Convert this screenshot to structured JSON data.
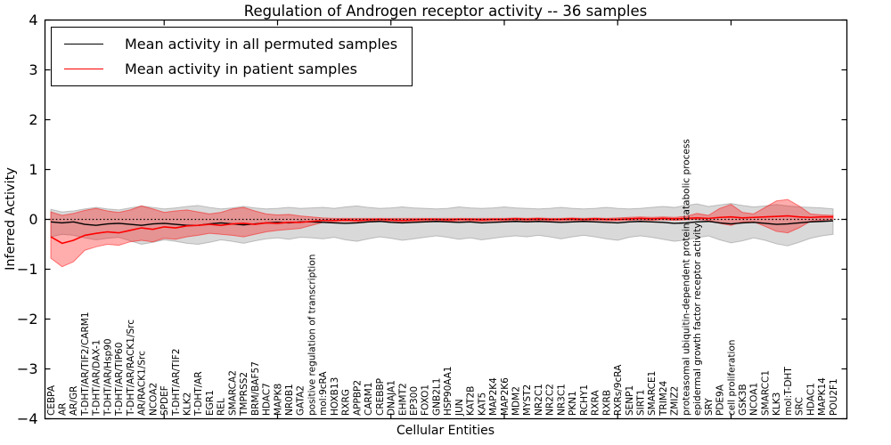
{
  "figure": {
    "title": "Regulation of Androgen receptor activity -- 36 samples",
    "xlabel": "Cellular Entities",
    "ylabel": "Inferred Activity"
  },
  "legend": {
    "entries": [
      {
        "label": "Mean activity in all permuted samples",
        "color": "#000000"
      },
      {
        "label": "Mean activity in patient samples",
        "color": "#ff0000"
      }
    ]
  },
  "chart_data": {
    "type": "line",
    "title": "Regulation of Androgen receptor activity -- 36 samples",
    "xlabel": "Cellular Entities",
    "ylabel": "Inferred Activity",
    "ylim": [
      -4,
      4
    ],
    "yticks": [
      -4,
      -3,
      -2,
      -1,
      0,
      1,
      2,
      3,
      4
    ],
    "grid": false,
    "legend_position": "upper left",
    "reference_line": {
      "y": 0,
      "style": "dotted",
      "color": "#000000"
    },
    "categories": [
      "CEBPA",
      "AR",
      "AR/GR",
      "T-DHT/AR/TIF2/CARM1",
      "T-DHT/AR/DAX-1",
      "T-DHT/AR/Hsp90",
      "T-DHT/AR/TIP60",
      "T-DHT/AR/RACK1/Src",
      "AR/RACK1/Src",
      "NCOA2",
      "SPDEF",
      "T-DHT/AR/TIF2",
      "KLK2",
      "T-DHT/AR",
      "EGR1",
      "REL",
      "SMARCA2",
      "TMPRSS2",
      "BRM/BAF57",
      "HDAC7",
      "MAPK8",
      "NR0B1",
      "GATA2",
      "positive regulation of transcription",
      "mol:9cRA",
      "HOXB13",
      "RXRG",
      "APPBP2",
      "CARM1",
      "CREBBP",
      "DNAJA1",
      "EHMT2",
      "EP300",
      "FOXO1",
      "GNB2L1",
      "HSP90AA1",
      "JUN",
      "KAT2B",
      "KAT5",
      "MAP2K4",
      "MAP2K6",
      "MDM2",
      "MYST2",
      "NR2C1",
      "NR2C2",
      "NR3C1",
      "PKN1",
      "RCHY1",
      "RXRA",
      "RXRB",
      "RXRs/9cRA",
      "SENP1",
      "SIRT1",
      "SMARCE1",
      "TRIM24",
      "ZMIZ2",
      "proteasomal ubiquitin-dependent protein catabolic process",
      "epidermal growth factor receptor activity",
      "SRY",
      "PDE9A",
      "cell proliferation",
      "GSK3B",
      "NCOA1",
      "SMARCC1",
      "KLK3",
      "mol:T-DHT",
      "SRC",
      "HDAC1",
      "MAPK14",
      "POU2F1"
    ],
    "series": [
      {
        "name": "Mean activity in all permuted samples",
        "color": "#000000",
        "band_fill": "#808080",
        "band_opacity": 0.3,
        "values": [
          -0.05,
          -0.07,
          -0.05,
          -0.1,
          -0.12,
          -0.09,
          -0.08,
          -0.1,
          -0.12,
          -0.09,
          -0.08,
          -0.1,
          -0.12,
          -0.12,
          -0.09,
          -0.07,
          -0.09,
          -0.11,
          -0.09,
          -0.07,
          -0.06,
          -0.07,
          -0.05,
          -0.05,
          -0.06,
          -0.07,
          -0.08,
          -0.07,
          -0.05,
          -0.04,
          -0.06,
          -0.07,
          -0.06,
          -0.05,
          -0.04,
          -0.05,
          -0.06,
          -0.05,
          -0.07,
          -0.06,
          -0.05,
          -0.04,
          -0.05,
          -0.04,
          -0.05,
          -0.06,
          -0.05,
          -0.04,
          -0.05,
          -0.06,
          -0.07,
          -0.05,
          -0.04,
          -0.05,
          -0.06,
          -0.08,
          -0.07,
          -0.05,
          -0.04,
          -0.07,
          -0.09,
          -0.07,
          -0.06,
          -0.08,
          -0.1,
          -0.09,
          -0.07,
          -0.05,
          -0.04,
          -0.03
        ],
        "band_high": [
          0.2,
          0.15,
          0.17,
          0.21,
          0.24,
          0.21,
          0.19,
          0.23,
          0.27,
          0.24,
          0.21,
          0.23,
          0.26,
          0.28,
          0.24,
          0.21,
          0.23,
          0.26,
          0.23,
          0.21,
          0.22,
          0.24,
          0.22,
          0.23,
          0.24,
          0.22,
          0.25,
          0.27,
          0.24,
          0.22,
          0.23,
          0.25,
          0.23,
          0.22,
          0.21,
          0.22,
          0.25,
          0.23,
          0.22,
          0.23,
          0.25,
          0.23,
          0.22,
          0.21,
          0.22,
          0.24,
          0.22,
          0.21,
          0.22,
          0.24,
          0.22,
          0.21,
          0.22,
          0.24,
          0.26,
          0.24,
          0.28,
          0.31,
          0.26,
          0.29,
          0.32,
          0.28,
          0.25,
          0.27,
          0.3,
          0.27,
          0.25,
          0.24,
          0.23,
          0.21
        ],
        "band_low": [
          -0.35,
          -0.3,
          -0.32,
          -0.37,
          -0.41,
          -0.38,
          -0.36,
          -0.43,
          -0.5,
          -0.46,
          -0.41,
          -0.44,
          -0.48,
          -0.5,
          -0.46,
          -0.41,
          -0.44,
          -0.48,
          -0.43,
          -0.39,
          -0.37,
          -0.4,
          -0.36,
          -0.37,
          -0.39,
          -0.36,
          -0.41,
          -0.44,
          -0.39,
          -0.35,
          -0.38,
          -0.42,
          -0.39,
          -0.36,
          -0.33,
          -0.36,
          -0.4,
          -0.37,
          -0.41,
          -0.38,
          -0.35,
          -0.33,
          -0.35,
          -0.32,
          -0.35,
          -0.39,
          -0.35,
          -0.32,
          -0.35,
          -0.39,
          -0.42,
          -0.36,
          -0.33,
          -0.36,
          -0.4,
          -0.44,
          -0.41,
          -0.37,
          -0.33,
          -0.41,
          -0.47,
          -0.43,
          -0.37,
          -0.42,
          -0.49,
          -0.53,
          -0.46,
          -0.38,
          -0.33,
          -0.3
        ]
      },
      {
        "name": "Mean activity in patient samples",
        "color": "#ff0000",
        "band_fill": "#ff0000",
        "band_opacity": 0.32,
        "values": [
          -0.35,
          -0.48,
          -0.42,
          -0.32,
          -0.28,
          -0.25,
          -0.27,
          -0.22,
          -0.17,
          -0.2,
          -0.15,
          -0.17,
          -0.13,
          -0.12,
          -0.1,
          -0.12,
          -0.09,
          -0.08,
          -0.1,
          -0.07,
          -0.08,
          -0.06,
          -0.06,
          -0.04,
          -0.02,
          -0.02,
          -0.01,
          -0.02,
          -0.01,
          0.0,
          -0.01,
          -0.02,
          -0.01,
          0.0,
          0.0,
          -0.01,
          0.0,
          0.0,
          -0.01,
          0.0,
          0.0,
          0.01,
          0.0,
          0.01,
          0.0,
          0.0,
          0.01,
          0.0,
          0.01,
          0.0,
          0.0,
          0.01,
          0.02,
          0.01,
          0.02,
          0.01,
          0.02,
          0.03,
          0.02,
          0.04,
          0.05,
          0.03,
          0.04,
          0.05,
          0.06,
          0.07,
          0.05,
          0.04,
          0.05,
          0.05
        ],
        "band_high": [
          0.15,
          0.08,
          0.12,
          0.18,
          0.22,
          0.17,
          0.14,
          0.19,
          0.27,
          0.21,
          0.14,
          0.17,
          0.19,
          0.15,
          0.11,
          0.14,
          0.21,
          0.24,
          0.17,
          0.11,
          0.09,
          0.1,
          0.07,
          0.05,
          0.03,
          0.02,
          0.02,
          0.02,
          0.02,
          0.02,
          0.02,
          0.02,
          0.02,
          0.02,
          0.02,
          0.02,
          0.02,
          0.02,
          0.02,
          0.02,
          0.02,
          0.03,
          0.02,
          0.03,
          0.02,
          0.02,
          0.03,
          0.02,
          0.03,
          0.02,
          0.03,
          0.04,
          0.05,
          0.04,
          0.05,
          0.04,
          0.06,
          0.12,
          0.08,
          0.22,
          0.3,
          0.14,
          0.11,
          0.24,
          0.37,
          0.4,
          0.27,
          0.11,
          0.09,
          0.08
        ],
        "band_low": [
          -0.78,
          -0.95,
          -0.85,
          -0.62,
          -0.55,
          -0.5,
          -0.52,
          -0.45,
          -0.42,
          -0.45,
          -0.38,
          -0.4,
          -0.35,
          -0.32,
          -0.28,
          -0.3,
          -0.32,
          -0.35,
          -0.3,
          -0.25,
          -0.22,
          -0.2,
          -0.18,
          -0.12,
          -0.06,
          -0.05,
          -0.04,
          -0.05,
          -0.04,
          -0.03,
          -0.04,
          -0.05,
          -0.04,
          -0.03,
          -0.03,
          -0.04,
          -0.03,
          -0.03,
          -0.04,
          -0.03,
          -0.03,
          -0.02,
          -0.03,
          -0.02,
          -0.03,
          -0.03,
          -0.02,
          -0.03,
          -0.02,
          -0.03,
          -0.03,
          -0.02,
          -0.01,
          -0.02,
          -0.01,
          -0.02,
          -0.01,
          0.0,
          -0.02,
          -0.08,
          -0.12,
          -0.05,
          -0.05,
          -0.14,
          -0.24,
          -0.27,
          -0.17,
          -0.04,
          -0.02,
          0.0
        ]
      }
    ]
  }
}
